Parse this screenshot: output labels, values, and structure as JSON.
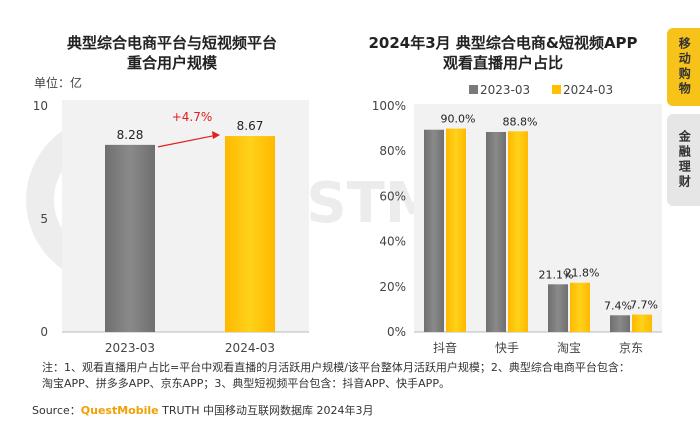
{
  "sidebar": {
    "active_tab": "移动购物",
    "other_tab": "金融理财"
  },
  "chart_data": [
    {
      "type": "bar",
      "title": "典型综合电商平台与短视频平台",
      "subtitle": "重合用户规模",
      "unit_label": "单位：亿",
      "categories": [
        "2023-03",
        "2024-03"
      ],
      "values": [
        8.28,
        8.67
      ],
      "value_labels": [
        "8.28",
        "8.67"
      ],
      "growth_label": "+4.7%",
      "ylim": [
        0,
        10
      ],
      "yticks": [
        "0",
        "5",
        "10"
      ],
      "colors": [
        "#7a7a7a",
        "#ffc000"
      ],
      "grid": false
    },
    {
      "type": "bar",
      "title": "2024年3月 典型综合电商&短视频APP",
      "subtitle": "观看直播用户占比",
      "categories": [
        "抖音",
        "快手",
        "淘宝",
        "京东"
      ],
      "series": [
        {
          "name": "2023-03",
          "values": [
            0.895,
            0.885,
            0.211,
            0.074
          ],
          "labels": [
            "",
            "",
            "21.1%",
            "7.4%"
          ],
          "color": "#7a7a7a"
        },
        {
          "name": "2024-03",
          "values": [
            0.9,
            0.888,
            0.218,
            0.077
          ],
          "labels": [
            "90.0%",
            "88.8%",
            "21.8%",
            "7.7%"
          ],
          "color": "#ffc000"
        }
      ],
      "ylim": [
        0,
        1
      ],
      "yticks": [
        "0%",
        "20%",
        "40%",
        "60%",
        "80%",
        "100%"
      ],
      "legend": "top",
      "grid": false
    }
  ],
  "footer": {
    "notes_line1": "注：1、观看直播用户占比=平台中观看直播的月活跃用户规模/该平台整体月活跃用户规模；2、典型综合电商平台包含：",
    "notes_line2": "淘宝APP、拼多多APP、京东APP；3、典型短视频平台包含：抖音APP、快手APP。",
    "source_prefix": "Source：",
    "source_brand": "QuestMobile",
    "source_suffix": " TRUTH 中国移动互联网数据库 2024年3月"
  },
  "watermark": "QUESTMOBILE"
}
